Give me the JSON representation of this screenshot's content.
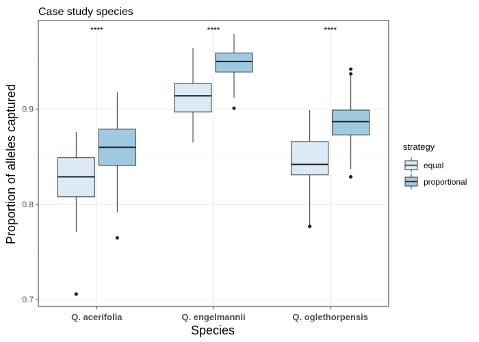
{
  "chart_data": {
    "type": "boxplot",
    "title": "Case study species",
    "xlabel": "Species",
    "ylabel": "Proportion of alleles captured",
    "categories": [
      "Q. acerifolia",
      "Q. engelmannii",
      "Q. oglethorpensis"
    ],
    "yticks": [
      "0.7",
      "0.8",
      "0.9"
    ],
    "ylim": [
      0.693,
      0.993
    ],
    "grid": true,
    "legend": {
      "title": "strategy",
      "position": "right"
    },
    "significance": [
      "****",
      "****",
      "****"
    ],
    "series": [
      {
        "name": "equal",
        "color": "#dce9f6",
        "boxes": [
          {
            "whisker_low": 0.771,
            "q1": 0.808,
            "median": 0.829,
            "q3": 0.849,
            "whisker_high": 0.876,
            "outliers": [
              0.706
            ]
          },
          {
            "whisker_low": 0.865,
            "q1": 0.897,
            "median": 0.914,
            "q3": 0.927,
            "whisker_high": 0.964,
            "outliers": []
          },
          {
            "whisker_low": 0.778,
            "q1": 0.831,
            "median": 0.842,
            "q3": 0.866,
            "whisker_high": 0.899,
            "outliers": [
              0.777
            ]
          }
        ]
      },
      {
        "name": "proportional",
        "color": "#9ecae1",
        "boxes": [
          {
            "whisker_low": 0.792,
            "q1": 0.841,
            "median": 0.86,
            "q3": 0.879,
            "whisker_high": 0.918,
            "outliers": [
              0.765
            ]
          },
          {
            "whisker_low": 0.912,
            "q1": 0.939,
            "median": 0.95,
            "q3": 0.959,
            "whisker_high": 0.979,
            "outliers": [
              0.901
            ]
          },
          {
            "whisker_low": 0.837,
            "q1": 0.873,
            "median": 0.887,
            "q3": 0.899,
            "whisker_high": 0.935,
            "outliers": [
              0.829,
              0.937,
              0.942
            ]
          }
        ]
      }
    ]
  }
}
